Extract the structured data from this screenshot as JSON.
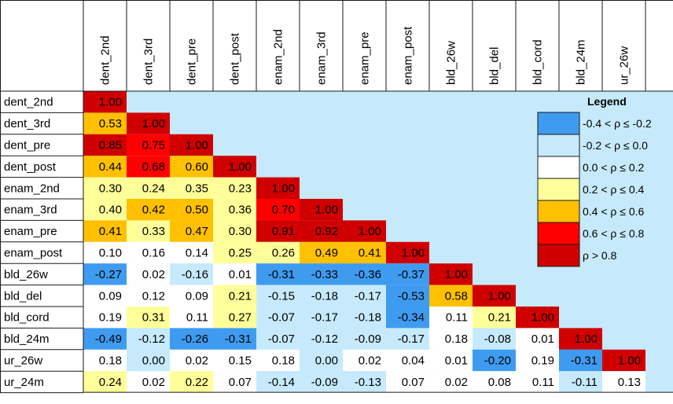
{
  "chart_data": {
    "type": "heatmap",
    "title": "",
    "rows": [
      "dent_2nd",
      "dent_3rd",
      "dent_pre",
      "dent_post",
      "enam_2nd",
      "enam_3rd",
      "enam_pre",
      "enam_post",
      "bld_26w",
      "bld_del",
      "bld_cord",
      "bld_24m",
      "ur_26w",
      "ur_24m"
    ],
    "columns": [
      "dent_2nd",
      "dent_3rd",
      "dent_pre",
      "dent_post",
      "enam_2nd",
      "enam_3rd",
      "enam_pre",
      "enam_post",
      "bld_26w",
      "bld_del",
      "bld_cord",
      "bld_24m",
      "ur_26w"
    ],
    "values": [
      [
        "1.00"
      ],
      [
        "0.53",
        "1.00"
      ],
      [
        "0.85",
        "0.75",
        "1.00"
      ],
      [
        "0.44",
        "0.68",
        "0.60",
        "1.00"
      ],
      [
        "0.30",
        "0.24",
        "0.35",
        "0.23",
        "1.00"
      ],
      [
        "0.40",
        "0.42",
        "0.50",
        "0.36",
        "0.70",
        "1.00"
      ],
      [
        "0.41",
        "0.33",
        "0.47",
        "0.30",
        "0.91",
        "0.92",
        "1.00"
      ],
      [
        "0.10",
        "0.16",
        "0.14",
        "0.25",
        "0.26",
        "0.49",
        "0.41",
        "1.00"
      ],
      [
        "-0.27",
        "0.02",
        "-0.16",
        "0.01",
        "-0.31",
        "-0.33",
        "-0.36",
        "-0.37",
        "1.00"
      ],
      [
        "0.09",
        "0.12",
        "0.09",
        "0.21",
        "-0.15",
        "-0.18",
        "-0.17",
        "-0.53",
        "0.58",
        "1.00"
      ],
      [
        "0.19",
        "0.31",
        "0.11",
        "0.27",
        "-0.07",
        "-0.17",
        "-0.18",
        "-0.34",
        "0.11",
        "0.21",
        "1.00"
      ],
      [
        "-0.49",
        "-0.12",
        "-0.26",
        "-0.31",
        "-0.07",
        "-0.12",
        "-0.09",
        "-0.17",
        "0.18",
        "-0.08",
        "0.01",
        "1.00"
      ],
      [
        "0.18",
        "0.00",
        "0.02",
        "0.15",
        "0.18",
        "0.00",
        "0.02",
        "0.04",
        "0.01",
        "-0.20",
        "0.19",
        "-0.31",
        "1.00"
      ],
      [
        "0.24",
        "0.02",
        "0.22",
        "0.07",
        "-0.14",
        "-0.09",
        "-0.13",
        "0.07",
        "0.02",
        "0.08",
        "0.11",
        "-0.11",
        "0.13"
      ]
    ],
    "legend": {
      "title": "Legend",
      "items": [
        {
          "label": "-0.4 < ρ ≤ -0.2",
          "color": "#3F9BF0"
        },
        {
          "label": "-0.2 < ρ ≤  0.0",
          "color": "#C6EAFB"
        },
        {
          "label": "0.0 < ρ ≤  0.2",
          "color": "#FFFFFF"
        },
        {
          "label": "0.2 < ρ ≤  0.4",
          "color": "#FFFF99"
        },
        {
          "label": "0.4 < ρ ≤  0.6",
          "color": "#FFC000"
        },
        {
          "label": "0.6 < ρ ≤  0.8",
          "color": "#FF0000"
        },
        {
          "label": "ρ >  0.8",
          "color": "#D00000"
        }
      ]
    },
    "background_color": "#C6EAFB"
  }
}
